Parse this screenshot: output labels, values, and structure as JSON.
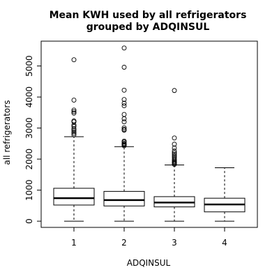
{
  "chart_data": {
    "type": "boxplot",
    "title_lines": [
      "Mean KWH used by all refrigerators",
      "grouped by ADQINSUL"
    ],
    "xlabel": "ADQINSUL",
    "ylabel": "all refrigerators",
    "categories": [
      "1",
      "2",
      "3",
      "4"
    ],
    "ylim": [
      -200,
      5800
    ],
    "yticks": [
      0,
      1000,
      2000,
      3000,
      4000,
      5000
    ],
    "grid": false,
    "boxes": [
      {
        "category": "1",
        "whisker_low": 0,
        "q1": 520,
        "median": 740,
        "q3": 1060,
        "whisker_high": 2720,
        "outliers": [
          2780,
          2830,
          2880,
          2930,
          2980,
          3050,
          3100,
          3200,
          3230,
          3480,
          3530,
          3580,
          3900,
          5200
        ]
      },
      {
        "category": "2",
        "whisker_low": 0,
        "q1": 490,
        "median": 680,
        "q3": 960,
        "whisker_high": 2400,
        "outliers": [
          2430,
          2460,
          2480,
          2510,
          2550,
          2580,
          2930,
          2960,
          3010,
          3200,
          3300,
          3440,
          3720,
          3800,
          3920,
          4220,
          4960,
          5580
        ]
      },
      {
        "category": "3",
        "whisker_low": 0,
        "q1": 460,
        "median": 600,
        "q3": 790,
        "whisker_high": 1810,
        "outliers": [
          1830,
          1860,
          1890,
          1920,
          1960,
          2000,
          2050,
          2100,
          2150,
          2200,
          2260,
          2360,
          2480,
          2680,
          4210
        ]
      },
      {
        "category": "4",
        "whisker_low": 0,
        "q1": 300,
        "median": 540,
        "q3": 740,
        "whisker_high": 1720,
        "outliers": []
      }
    ]
  }
}
